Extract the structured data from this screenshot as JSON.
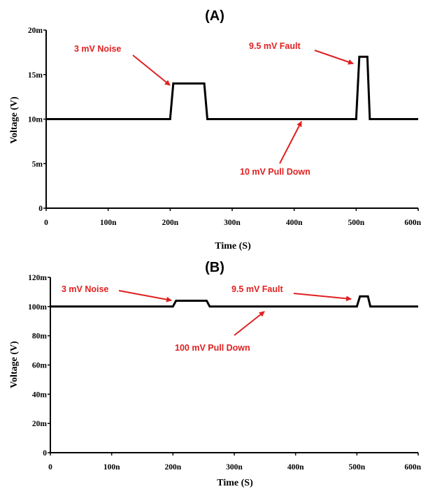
{
  "colors": {
    "trace": "#000000",
    "annotation": "#e02020",
    "axis": "#000000"
  },
  "chart_data": [
    {
      "type": "line",
      "title": "(A)",
      "xlabel": "Time (S)",
      "ylabel": "Voltage (V)",
      "xlim": [
        0,
        600
      ],
      "ylim": [
        0,
        20
      ],
      "x_ticks": [
        "0",
        "100n",
        "200n",
        "300n",
        "400n",
        "500n",
        "600n"
      ],
      "y_ticks": [
        "0",
        "5m",
        "10m",
        "15m",
        "20m"
      ],
      "grid": false,
      "series": [
        {
          "x": [
            0,
            200,
            205,
            255,
            260,
            500,
            505,
            518,
            522,
            600
          ],
          "y": [
            10,
            10,
            14,
            14,
            10,
            10,
            17,
            17,
            10,
            10
          ]
        }
      ],
      "annotations": [
        {
          "text": "3 mV Noise",
          "target": [
            205,
            14
          ]
        },
        {
          "text": "9.5 mV Fault",
          "target": [
            503,
            16.4
          ]
        },
        {
          "text": "10 mV Pull Down",
          "target": [
            410,
            10
          ]
        }
      ]
    },
    {
      "type": "line",
      "title": "(B)",
      "xlabel": "Time (S)",
      "ylabel": "Voltage (V)",
      "xlim": [
        0,
        600
      ],
      "ylim": [
        0,
        120
      ],
      "x_ticks": [
        "0",
        "100n",
        "200n",
        "300n",
        "400n",
        "500n",
        "600n"
      ],
      "y_ticks": [
        "0",
        "20m",
        "40m",
        "60m",
        "80m",
        "100m",
        "120m"
      ],
      "grid": false,
      "series": [
        {
          "x": [
            0,
            200,
            205,
            255,
            260,
            500,
            505,
            518,
            522,
            600
          ],
          "y": [
            100,
            100,
            104,
            104,
            100,
            100,
            107,
            107,
            100,
            100
          ]
        }
      ],
      "annotations": [
        {
          "text": "3 mV Noise",
          "target": [
            200,
            102
          ]
        },
        {
          "text": "9.5 mV Fault",
          "target": [
            500,
            105.5
          ]
        },
        {
          "text": "100 mV Pull Down",
          "target": [
            350,
            100
          ]
        }
      ]
    }
  ]
}
